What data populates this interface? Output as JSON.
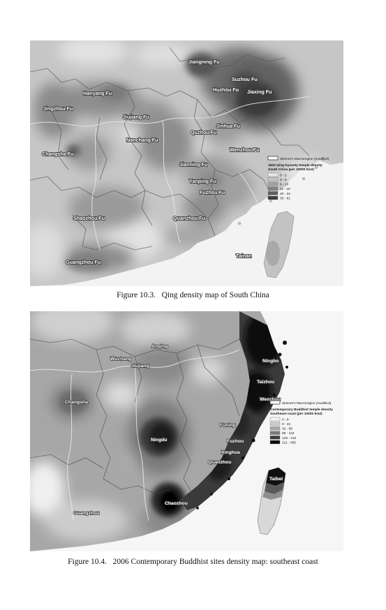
{
  "figure1": {
    "caption_number": "Figure 10.3.",
    "caption_text": "Qing density map of South China",
    "legend": {
      "boundary_label": "Skinner's Macroregion (modified)",
      "title_line1": "1820 Qing Dynasty temple density",
      "title_line2": "South China (per 10000 km2)",
      "classes": [
        {
          "label": "0 - 2",
          "color": "#e6e6e6"
        },
        {
          "label": "3 - 5",
          "color": "#c3c3c3"
        },
        {
          "label": "6 - 10",
          "color": "#a2a2a2"
        },
        {
          "label": "11 - 19",
          "color": "#818181"
        },
        {
          "label": "20 - 34",
          "color": "#5e5e5e"
        },
        {
          "label": "35 - 61",
          "color": "#3b3b3b"
        }
      ]
    },
    "places": [
      "Jiangning Fu",
      "Suzhou Fu",
      "Huzhou Fu",
      "Jiaxing Fu",
      "Hanyang Fu",
      "Jingzhou Fu",
      "Jiujiang Fu",
      "Nanchang Fu",
      "Jinhua Fu",
      "Quzhou Fu",
      "Wenzhou Fu",
      "Changsha Fu",
      "Jianning Fu",
      "Yanping Fu",
      "Fuzhou Fu",
      "Shaozhou Fu",
      "Quanzhou Fu",
      "Tainan",
      "Guangzhou Fu"
    ]
  },
  "figure2": {
    "caption_number": "Figure 10.4.",
    "caption_text": "2006 Contemporary Buddhist sites density map: southeast coast",
    "legend": {
      "boundary_label": "Skinner's Macroregion (modified)",
      "title_line1": "Contemporary Buddhist temple density",
      "title_line2": "Southeast coast (per 10000 km2)",
      "classes": [
        {
          "label": "0 - 8",
          "color": "#f2f2f2"
        },
        {
          "label": "9 - 31",
          "color": "#cdcdcd"
        },
        {
          "label": "32 - 68",
          "color": "#a8a8a8"
        },
        {
          "label": "69 - 124",
          "color": "#7a7a7a"
        },
        {
          "label": "125 - 210",
          "color": "#3c3c3c"
        },
        {
          "label": "211 - 356",
          "color": "#0a0a0a"
        }
      ]
    },
    "places": [
      "Anqing",
      "Wuchang",
      "Jiujiang",
      "Ningbo",
      "Taizhou",
      "Wenzhou",
      "Changsha",
      "Funing",
      "Fuzhou",
      "Ningdu",
      "Xinghua",
      "Quanzhou",
      "Taibei",
      "Chaozhou",
      "Guangzhou"
    ]
  }
}
